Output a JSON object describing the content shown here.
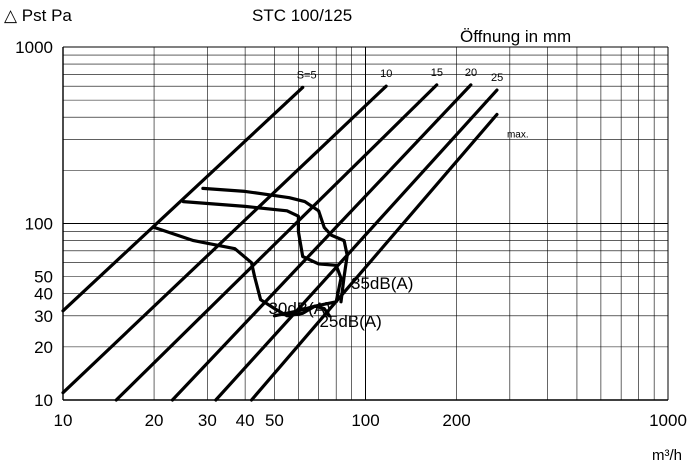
{
  "chart_data": {
    "type": "line",
    "title": "STC 100/125",
    "xlabel": "m³/h",
    "ylabel": "△ Pst Pa",
    "xscale": "log",
    "yscale": "log",
    "xlim": [
      10,
      1000
    ],
    "ylim": [
      10,
      1000
    ],
    "x_ticks": [
      {
        "value": 10,
        "label": "10"
      },
      {
        "value": 20,
        "label": "20"
      },
      {
        "value": 30,
        "label": "30"
      },
      {
        "value": 40,
        "label": "40"
      },
      {
        "value": 50,
        "label": "50"
      },
      {
        "value": 100,
        "label": "100"
      },
      {
        "value": 200,
        "label": "200"
      },
      {
        "value": 1000,
        "label": "1000"
      }
    ],
    "y_ticks": [
      {
        "value": 10,
        "label": "10"
      },
      {
        "value": 20,
        "label": "20"
      },
      {
        "value": 30,
        "label": "30"
      },
      {
        "value": 40,
        "label": "40"
      },
      {
        "value": 50,
        "label": "50"
      },
      {
        "value": 100,
        "label": "100"
      },
      {
        "value": 1000,
        "label": "1000"
      }
    ],
    "opening_title": "Öffnung in mm",
    "openings": [
      {
        "label": "S=5",
        "points": [
          [
            10,
            32
          ],
          [
            62,
            590
          ]
        ]
      },
      {
        "label": "10",
        "points": [
          [
            10,
            11
          ],
          [
            117,
            600
          ]
        ]
      },
      {
        "label": "15",
        "points": [
          [
            15,
            10
          ],
          [
            172,
            610
          ]
        ]
      },
      {
        "label": "20",
        "points": [
          [
            23,
            10
          ],
          [
            223,
            610
          ]
        ]
      },
      {
        "label": "25",
        "points": [
          [
            32,
            10
          ],
          [
            272,
            570
          ]
        ]
      },
      {
        "label": "max.",
        "points": [
          [
            42,
            10
          ],
          [
            272,
            415
          ]
        ]
      }
    ],
    "noise_curves": [
      {
        "label": "35dB(A)",
        "points": [
          [
            29,
            158
          ],
          [
            40,
            152
          ],
          [
            56,
            140
          ],
          [
            63,
            133
          ],
          [
            70,
            118
          ],
          [
            73,
            95
          ],
          [
            77,
            86
          ],
          [
            85,
            80
          ],
          [
            87,
            66
          ],
          [
            85,
            50
          ],
          [
            83,
            36
          ]
        ]
      },
      {
        "label": "30dB(A)",
        "points": [
          [
            25,
            133
          ],
          [
            40,
            125
          ],
          [
            55,
            118
          ],
          [
            60,
            110
          ],
          [
            60,
            90
          ],
          [
            62,
            65
          ],
          [
            70,
            59
          ],
          [
            80,
            58
          ],
          [
            83,
            49
          ],
          [
            80,
            36
          ],
          [
            68,
            34
          ],
          [
            60,
            32
          ],
          [
            50,
            30
          ]
        ]
      },
      {
        "label": "25dB(A)",
        "points": [
          [
            20,
            95
          ],
          [
            27,
            80
          ],
          [
            37,
            72
          ],
          [
            42,
            60
          ],
          [
            43,
            50
          ],
          [
            45,
            37
          ],
          [
            50,
            33
          ],
          [
            55,
            30
          ],
          [
            62,
            31
          ],
          [
            68,
            34
          ],
          [
            73,
            33
          ],
          [
            76,
            30
          ]
        ]
      }
    ]
  }
}
